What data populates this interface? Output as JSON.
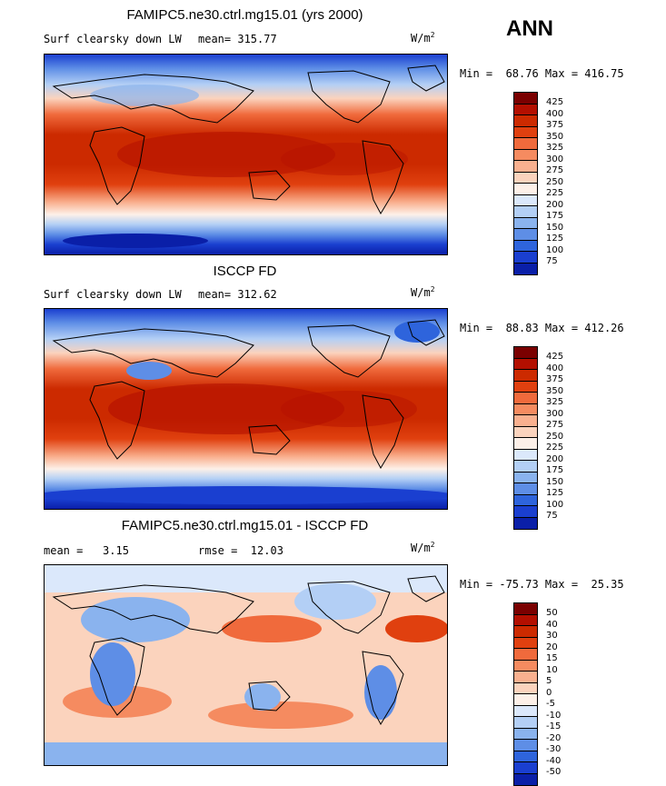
{
  "season": "ANN",
  "units_base": "W/m",
  "units_exp": "2",
  "panels": [
    {
      "title": "FAMIPC5.ne30.ctrl.mg15.01 (yrs 2000)",
      "field": "Surf clearsky down LW",
      "stat": "mean= 315.77",
      "minmax": "Min =  68.76 Max = 416.75",
      "colorbar": {
        "ticks": [
          "425",
          "400",
          "375",
          "350",
          "325",
          "300",
          "275",
          "250",
          "225",
          "200",
          "175",
          "150",
          "125",
          "100",
          "75"
        ],
        "colors": [
          "#7a0000",
          "#b30f00",
          "#cc2a00",
          "#e0400f",
          "#f06a3c",
          "#f58b60",
          "#f9b08f",
          "#fbd3bd",
          "#fdf0e8",
          "#dbe8fb",
          "#b3cff5",
          "#8ab3ee",
          "#5e8ee6",
          "#2e64dc",
          "#1a3fd0",
          "#0a1fa8"
        ]
      }
    },
    {
      "title": "ISCCP FD",
      "field": "Surf clearsky down LW",
      "stat": "mean= 312.62",
      "minmax": "Min =  88.83 Max = 412.26",
      "colorbar": {
        "ticks": [
          "425",
          "400",
          "375",
          "350",
          "325",
          "300",
          "275",
          "250",
          "225",
          "200",
          "175",
          "150",
          "125",
          "100",
          "75"
        ],
        "colors": [
          "#7a0000",
          "#b30f00",
          "#cc2a00",
          "#e0400f",
          "#f06a3c",
          "#f58b60",
          "#f9b08f",
          "#fbd3bd",
          "#fdf0e8",
          "#dbe8fb",
          "#b3cff5",
          "#8ab3ee",
          "#5e8ee6",
          "#2e64dc",
          "#1a3fd0",
          "#0a1fa8"
        ]
      }
    },
    {
      "title": "FAMIPC5.ne30.ctrl.mg15.01 - ISCCP FD",
      "stat": "mean =   3.15",
      "rmse": "rmse =  12.03",
      "minmax": "Min = -75.73 Max =  25.35",
      "colorbar": {
        "ticks": [
          "50",
          "40",
          "30",
          "20",
          "15",
          "10",
          "5",
          "0",
          "-5",
          "-10",
          "-15",
          "-20",
          "-30",
          "-40",
          "-50"
        ],
        "colors": [
          "#7a0000",
          "#b30f00",
          "#cc2a00",
          "#e0400f",
          "#f06a3c",
          "#f58b60",
          "#f9b08f",
          "#fbd3bd",
          "#fdf0e8",
          "#dbe8fb",
          "#b3cff5",
          "#8ab3ee",
          "#5e8ee6",
          "#2e64dc",
          "#1a3fd0",
          "#0a1fa8"
        ]
      }
    }
  ]
}
